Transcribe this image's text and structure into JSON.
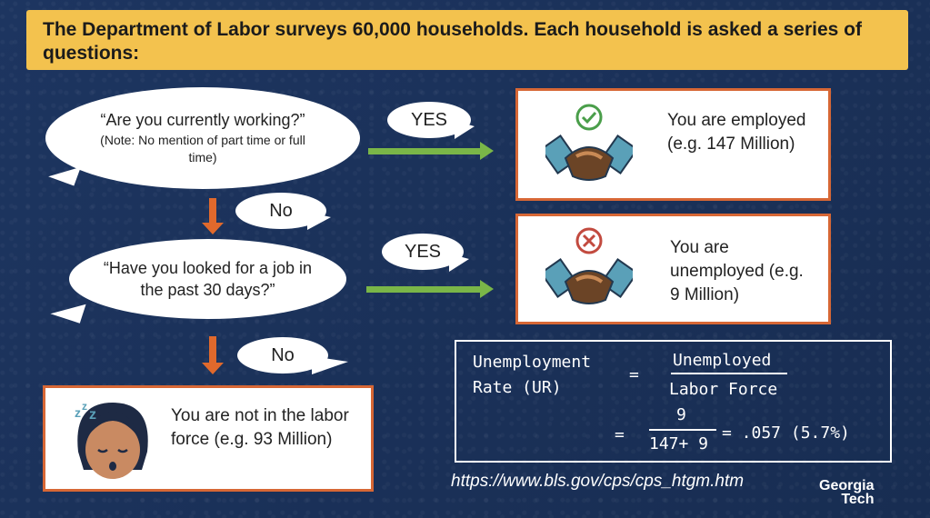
{
  "banner": {
    "text": "The Department of Labor surveys 60,000 households. Each household is asked a series of questions:"
  },
  "q1": {
    "text": "“Are you currently working?”",
    "note": "(Note: No mention of part time or full time)"
  },
  "q2": {
    "text": "“Have you looked for a job in the past 30 days?”"
  },
  "answers": {
    "yes1": "YES",
    "no1": "No",
    "yes2": "YES",
    "no2": "No"
  },
  "employed": {
    "text": "You are employed (e.g. 147 Million)",
    "badge": "check-icon"
  },
  "unemployed": {
    "text": "You are unemployed (e.g. 9 Million)",
    "badge": "x-icon"
  },
  "not_in_force": {
    "text": "You are not in the labor force (e.g. 93 Million)"
  },
  "formula": {
    "lhs_line1": "Unemployment",
    "lhs_line2": "Rate (UR)",
    "eq1": "=",
    "numerator": "Unemployed",
    "denominator": "Labor Force",
    "eq2": "=",
    "num2": "9",
    "den2": "147+ 9",
    "result": "= .057 (5.7%)"
  },
  "source_url": "https://www.bls.gov/cps/cps_htgm.htm",
  "logo": {
    "line1": "Georgia",
    "line2": "Tech"
  },
  "colors": {
    "background": "#1b3257",
    "banner": "#f3c24e",
    "box_border": "#d76735",
    "yes_arrow": "#7ab648",
    "no_arrow": "#e0692c"
  }
}
